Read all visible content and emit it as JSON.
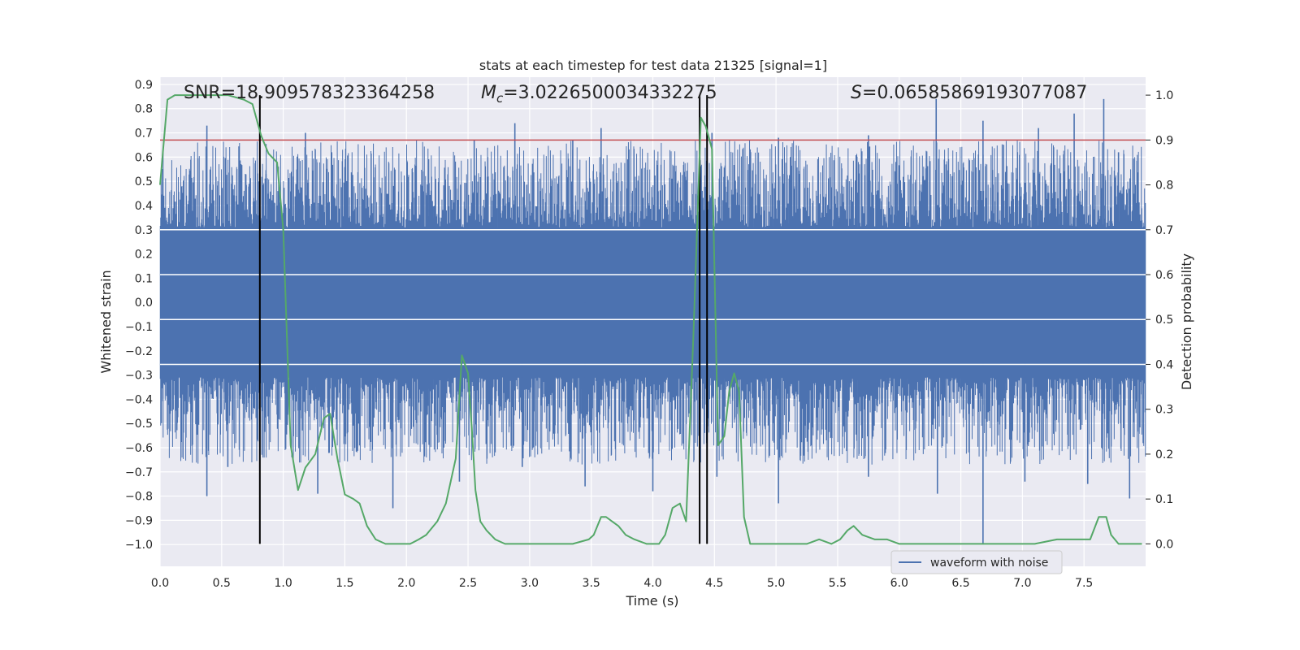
{
  "chart_data": {
    "type": "line",
    "title": "stats at each timestep for test data 21325 [signal=1]",
    "xlabel": "Time (s)",
    "ylabel": "Whitened strain",
    "y2label": "Detection probability",
    "xlim": [
      0.0,
      8.0
    ],
    "ylim": [
      -1.09,
      0.93
    ],
    "y2lim": [
      -0.05,
      1.04
    ],
    "xticks": [
      "0.0",
      "0.5",
      "1.0",
      "1.5",
      "2.0",
      "2.5",
      "3.0",
      "3.5",
      "4.0",
      "4.5",
      "5.0",
      "5.5",
      "6.0",
      "6.5",
      "7.0",
      "7.5"
    ],
    "yticks": [
      "0.9",
      "0.8",
      "0.7",
      "0.6",
      "0.5",
      "0.4",
      "0.3",
      "0.2",
      "0.1",
      "0.0",
      "−0.1",
      "−0.2",
      "−0.3",
      "−0.4",
      "−0.5",
      "−0.6",
      "−0.7",
      "−0.8",
      "−0.9",
      "−1.0"
    ],
    "y2ticks": [
      "1.0",
      "0.9",
      "0.8",
      "0.7",
      "0.6",
      "0.5",
      "0.4",
      "0.3",
      "0.2",
      "0.1",
      "0.0"
    ],
    "grid": true,
    "legend": {
      "location": "lower-right",
      "entries": [
        "waveform with noise"
      ]
    },
    "annotations": {
      "snr": "SNR=18.909578323364258",
      "mc_symbol": "M",
      "mc_subscript": "c",
      "mc_value": "=3.0226500034332275",
      "s_symbol": "S",
      "s_value": "=0.06585869193077087"
    },
    "threshold_probability": 0.9,
    "vertical_markers_time": [
      0.81,
      4.38,
      4.44
    ],
    "series": [
      {
        "name": "waveform with noise",
        "color": "#4c72b0",
        "axis": "left",
        "band_min": -0.31,
        "band_max": 0.3,
        "peaks_time": [
          0.38,
          0.86,
          1.18,
          2.55,
          2.88,
          3.35,
          3.58,
          4.48,
          5.02,
          5.75,
          6.3,
          6.68,
          7.13,
          7.42,
          7.66,
          7.78
        ],
        "peaks_value": [
          0.73,
          0.53,
          0.7,
          0.67,
          0.74,
          0.67,
          0.72,
          0.7,
          0.68,
          0.69,
          0.84,
          0.75,
          0.72,
          0.78,
          0.84,
          0.62
        ],
        "troughs_time": [
          0.38,
          0.55,
          1.28,
          1.89,
          2.43,
          2.94,
          3.45,
          4.0,
          4.52,
          5.02,
          5.75,
          6.31,
          6.68,
          7.02,
          7.53,
          7.87
        ],
        "troughs_value": [
          -0.8,
          -0.68,
          -0.79,
          -0.85,
          -0.74,
          -0.68,
          -0.76,
          -0.78,
          -0.72,
          -0.83,
          -0.72,
          -0.79,
          -1.0,
          -0.74,
          -0.75,
          -0.81
        ]
      },
      {
        "name": "",
        "color": "#55a868",
        "axis": "right",
        "x": [
          0.0,
          0.06,
          0.12,
          0.35,
          0.55,
          0.68,
          0.75,
          0.82,
          0.88,
          0.95,
          1.0,
          1.06,
          1.12,
          1.18,
          1.26,
          1.33,
          1.38,
          1.44,
          1.5,
          1.57,
          1.62,
          1.68,
          1.75,
          1.83,
          1.92,
          2.03,
          2.1,
          2.16,
          2.25,
          2.32,
          2.4,
          2.45,
          2.5,
          2.53,
          2.56,
          2.6,
          2.65,
          2.72,
          2.8,
          2.9,
          3.0,
          3.15,
          3.35,
          3.48,
          3.52,
          3.58,
          3.62,
          3.67,
          3.72,
          3.78,
          3.85,
          3.95,
          4.05,
          4.1,
          4.16,
          4.22,
          4.27,
          4.33,
          4.39,
          4.43,
          4.48,
          4.53,
          4.58,
          4.62,
          4.66,
          4.7,
          4.74,
          4.79,
          4.9,
          5.1,
          5.25,
          5.35,
          5.45,
          5.52,
          5.58,
          5.63,
          5.7,
          5.8,
          5.9,
          6.0,
          6.15,
          6.3,
          6.5,
          6.7,
          6.9,
          7.1,
          7.28,
          7.38,
          7.45,
          7.55,
          7.62,
          7.68,
          7.72,
          7.78,
          7.85,
          7.92,
          7.97
        ],
        "y": [
          0.8,
          0.99,
          1.0,
          1.0,
          1.0,
          0.99,
          0.98,
          0.91,
          0.87,
          0.85,
          0.7,
          0.22,
          0.12,
          0.17,
          0.2,
          0.28,
          0.29,
          0.19,
          0.11,
          0.1,
          0.09,
          0.04,
          0.01,
          0.0,
          0.0,
          0.0,
          0.01,
          0.02,
          0.05,
          0.09,
          0.19,
          0.42,
          0.38,
          0.26,
          0.12,
          0.05,
          0.03,
          0.01,
          0.0,
          0.0,
          0.0,
          0.0,
          0.0,
          0.01,
          0.02,
          0.06,
          0.06,
          0.05,
          0.04,
          0.02,
          0.01,
          0.0,
          0.0,
          0.02,
          0.08,
          0.09,
          0.05,
          0.47,
          0.95,
          0.93,
          0.88,
          0.22,
          0.24,
          0.34,
          0.38,
          0.34,
          0.06,
          0.0,
          0.0,
          0.0,
          0.0,
          0.01,
          0.0,
          0.01,
          0.03,
          0.04,
          0.02,
          0.01,
          0.01,
          0.0,
          0.0,
          0.0,
          0.0,
          0.0,
          0.0,
          0.0,
          0.01,
          0.01,
          0.01,
          0.01,
          0.06,
          0.06,
          0.02,
          0.0,
          0.0,
          0.0,
          0.0
        ]
      }
    ]
  }
}
